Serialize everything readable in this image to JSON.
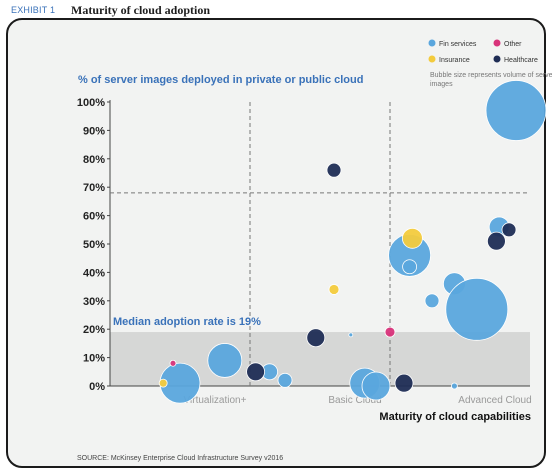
{
  "exhibit_label": "EXHIBIT 1",
  "title": "Maturity of cloud adoption",
  "source": "SOURCE: McKinsey Enterprise Cloud Infrastructure Survey v2016",
  "colors": {
    "fin_services": "#5aa6dd",
    "insurance": "#f3cb3d",
    "other": "#d8337a",
    "healthcare": "#1f2d55",
    "axis_title": "#3a72b9",
    "median_band": "#d6d7d6"
  },
  "chart_data": {
    "type": "scatter",
    "title": "% of server images deployed in private or public cloud",
    "ylabel": "% of server images deployed in private or public cloud",
    "xlabel": "Maturity of cloud capabilities",
    "ylim": [
      0,
      100
    ],
    "yticks": [
      "0%",
      "10%",
      "20%",
      "30%",
      "40%",
      "50%",
      "60%",
      "70%",
      "80%",
      "90%",
      "100%"
    ],
    "x_categories": [
      "Virtualization+",
      "Basic Cloud",
      "Advanced Cloud"
    ],
    "xlim": [
      0,
      3
    ],
    "median_adoption": 19,
    "median_label": "Median adoption rate is 19%",
    "reference_line_y": 68,
    "legend": {
      "position": "top-right",
      "note": "Bubble size represents volume of server images",
      "entries": [
        {
          "key": "fin_services",
          "label": "Fin services"
        },
        {
          "key": "other",
          "label": "Other"
        },
        {
          "key": "insurance",
          "label": "Insurance"
        },
        {
          "key": "healthcare",
          "label": "Healthcare"
        }
      ]
    },
    "series": [
      {
        "name": "Fin services",
        "key": "fin_services",
        "points": [
          {
            "x": 0.5,
            "y": 1,
            "size": 20
          },
          {
            "x": 0.82,
            "y": 9,
            "size": 17
          },
          {
            "x": 1.14,
            "y": 5,
            "size": 8
          },
          {
            "x": 1.25,
            "y": 2,
            "size": 7
          },
          {
            "x": 1.72,
            "y": 18,
            "size": 2
          },
          {
            "x": 1.82,
            "y": 1,
            "size": 15
          },
          {
            "x": 1.9,
            "y": 0,
            "size": 14
          },
          {
            "x": 2.14,
            "y": 46,
            "size": 21
          },
          {
            "x": 2.14,
            "y": 42,
            "size": 7
          },
          {
            "x": 2.3,
            "y": 30,
            "size": 7
          },
          {
            "x": 2.46,
            "y": 36,
            "size": 11
          },
          {
            "x": 2.46,
            "y": 0,
            "size": 3
          },
          {
            "x": 2.62,
            "y": 27,
            "size": 31
          },
          {
            "x": 2.78,
            "y": 56,
            "size": 10
          },
          {
            "x": 2.9,
            "y": 97,
            "size": 30
          }
        ]
      },
      {
        "name": "Insurance",
        "key": "insurance",
        "points": [
          {
            "x": 0.38,
            "y": 1,
            "size": 4
          },
          {
            "x": 1.6,
            "y": 34,
            "size": 5
          },
          {
            "x": 2.16,
            "y": 52,
            "size": 10
          }
        ]
      },
      {
        "name": "Other",
        "key": "other",
        "points": [
          {
            "x": 0.45,
            "y": 8,
            "size": 3
          },
          {
            "x": 2.0,
            "y": 19,
            "size": 5
          }
        ]
      },
      {
        "name": "Healthcare",
        "key": "healthcare",
        "points": [
          {
            "x": 1.04,
            "y": 5,
            "size": 9
          },
          {
            "x": 1.47,
            "y": 17,
            "size": 9
          },
          {
            "x": 1.6,
            "y": 76,
            "size": 7
          },
          {
            "x": 2.1,
            "y": 1,
            "size": 9
          },
          {
            "x": 2.76,
            "y": 51,
            "size": 9
          },
          {
            "x": 2.85,
            "y": 55,
            "size": 7
          }
        ]
      }
    ]
  }
}
